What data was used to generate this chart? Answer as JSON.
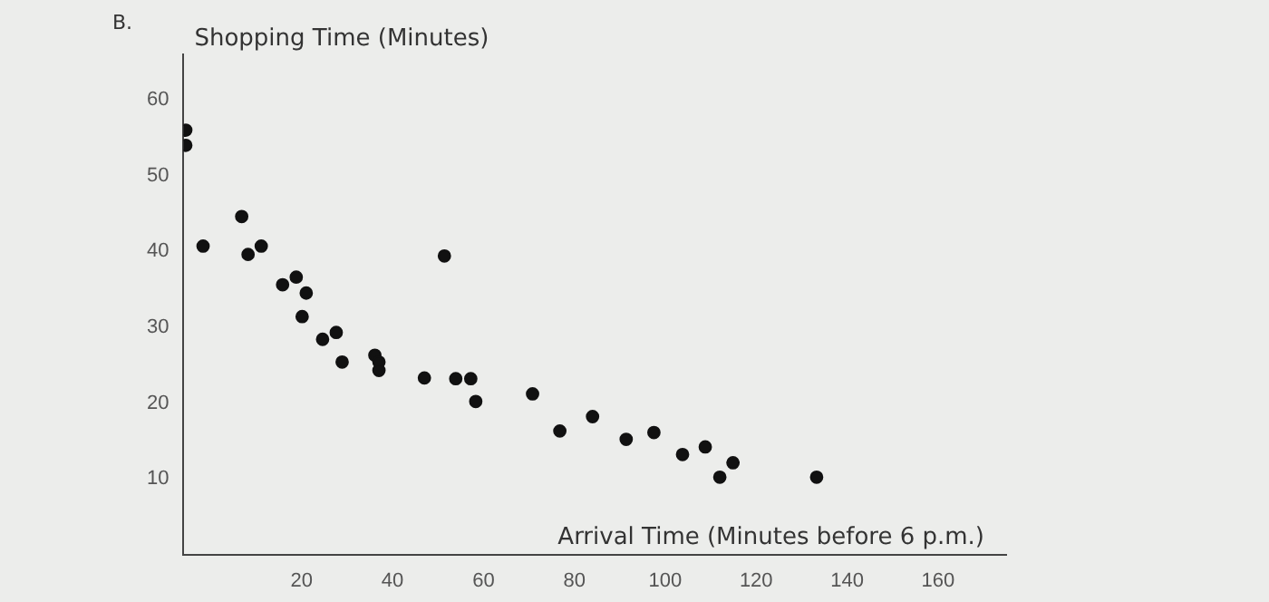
{
  "chart_data": {
    "type": "scatter",
    "ylabel": "Shopping Time (Minutes)",
    "xlabel": "Arrival Time (Minutes before 6 p.m.)",
    "annotations": [
      "B."
    ],
    "x": [
      -5.5,
      -5.5,
      -1.7,
      6.8,
      8.2,
      11.1,
      15.8,
      18.8,
      21,
      20.1,
      24.6,
      27.6,
      28.9,
      36.1,
      37,
      37,
      47,
      51.4,
      53.9,
      57.2,
      58.3,
      70.8,
      76.8,
      84,
      91.4,
      97.5,
      103.8,
      108.8,
      112,
      114.9,
      133.3
    ],
    "values": [
      56,
      54,
      40.7,
      44.6,
      39.6,
      40.7,
      35.6,
      36.6,
      34.5,
      31.4,
      28.4,
      29.3,
      25.4,
      26.3,
      25.4,
      24.3,
      23.3,
      39.4,
      23.2,
      23.2,
      20.2,
      21.2,
      16.3,
      18.2,
      15.2,
      16.1,
      13.2,
      14.2,
      10.2,
      12.1,
      10.2
    ],
    "color": "#111111",
    "marker": "circle",
    "xlim": [
      -6,
      175
    ],
    "xticks": [
      20,
      40,
      60,
      80,
      100,
      120,
      140,
      160
    ],
    "ylim": [
      0,
      66
    ],
    "yticks": [
      10,
      20,
      30,
      40,
      50,
      60
    ],
    "grid": false,
    "legend": false
  }
}
